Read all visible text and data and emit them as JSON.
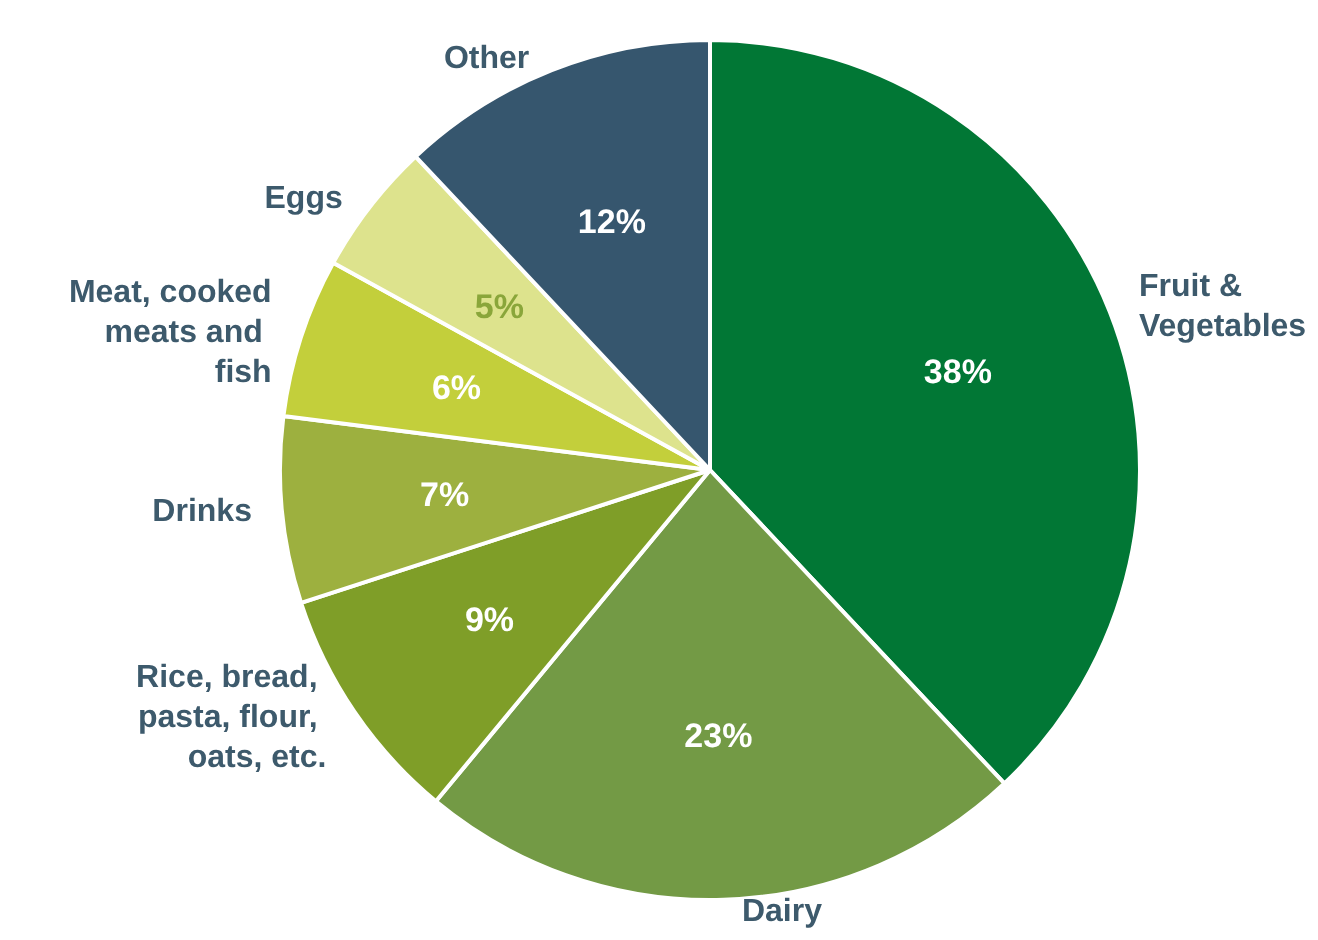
{
  "chart_data": {
    "type": "pie",
    "categories": [
      "Fruit & Vegetables",
      "Dairy",
      "Rice, bread, pasta, flour, oats, etc.",
      "Drinks",
      "Meat, cooked meats and fish",
      "Eggs",
      "Other"
    ],
    "values": [
      38,
      23,
      9,
      7,
      6,
      5,
      12
    ],
    "colors": [
      "#017735",
      "#739a45",
      "#7f9e28",
      "#9db03f",
      "#c3cf3b",
      "#dde38d",
      "#36566e"
    ],
    "value_labels": [
      "38%",
      "23%",
      "9%",
      "7%",
      "6%",
      "5%",
      "12%"
    ],
    "legend": false
  }
}
